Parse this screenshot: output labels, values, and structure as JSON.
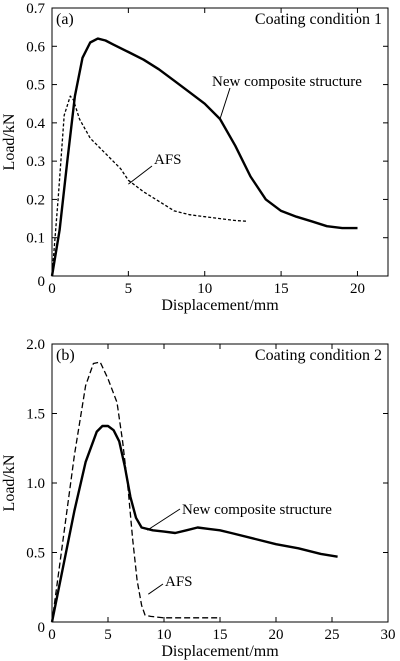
{
  "chart_data": [
    {
      "type": "line",
      "panel_label": "(a)",
      "annotation": "Coating condition 1",
      "xlabel": "Displacement/mm",
      "ylabel": "Load/kN",
      "xlim": [
        0,
        22
      ],
      "ylim": [
        0,
        0.7
      ],
      "xticks": [
        0,
        5,
        10,
        15,
        20
      ],
      "yticks": [
        0,
        0.1,
        0.2,
        0.3,
        0.4,
        0.5,
        0.6,
        0.7
      ],
      "xtick_labels": [
        "0",
        "5",
        "10",
        "15",
        "20"
      ],
      "ytick_labels": [
        "0",
        "0.1",
        "0.2",
        "0.3",
        "0.4",
        "0.5",
        "0.6",
        "0.7"
      ],
      "grid": false,
      "series": [
        {
          "name": "New composite structure",
          "style": "solid",
          "x": [
            0,
            0.5,
            1,
            1.5,
            2,
            2.5,
            3,
            3.5,
            4,
            5,
            6,
            7,
            8,
            9,
            10,
            11,
            12,
            13,
            14,
            15,
            16,
            17,
            18,
            19,
            20
          ],
          "y": [
            0,
            0.12,
            0.3,
            0.47,
            0.57,
            0.61,
            0.62,
            0.615,
            0.605,
            0.585,
            0.565,
            0.54,
            0.51,
            0.48,
            0.45,
            0.41,
            0.34,
            0.26,
            0.2,
            0.17,
            0.155,
            0.143,
            0.13,
            0.125,
            0.125
          ]
        },
        {
          "name": "AFS",
          "style": "dashed",
          "x": [
            0,
            0.4,
            0.8,
            1.2,
            1.4,
            1.8,
            2.5,
            3.5,
            4.5,
            5,
            6,
            7,
            8,
            9,
            10,
            11,
            12,
            12.8
          ],
          "y": [
            0,
            0.2,
            0.42,
            0.47,
            0.46,
            0.41,
            0.36,
            0.32,
            0.28,
            0.25,
            0.22,
            0.195,
            0.17,
            0.16,
            0.155,
            0.15,
            0.145,
            0.143
          ]
        }
      ],
      "labels": [
        {
          "text": "New composite structure",
          "series": "New composite structure"
        },
        {
          "text": "AFS",
          "series": "AFS"
        }
      ]
    },
    {
      "type": "line",
      "panel_label": "(b)",
      "annotation": "Coating condition 2",
      "xlabel": "Displacement/mm",
      "ylabel": "Load/kN",
      "xlim": [
        0,
        30
      ],
      "ylim": [
        0,
        2.0
      ],
      "xticks": [
        0,
        5,
        10,
        15,
        20,
        25,
        30
      ],
      "yticks": [
        0,
        0.5,
        1.0,
        1.5,
        2.0
      ],
      "xtick_labels": [
        "0",
        "5",
        "10",
        "15",
        "20",
        "25",
        "30"
      ],
      "ytick_labels": [
        "0",
        "0.5",
        "1.0",
        "1.5",
        "2.0"
      ],
      "grid": false,
      "series": [
        {
          "name": "New composite structure",
          "style": "solid",
          "x": [
            0,
            1,
            2,
            3,
            4,
            4.5,
            5,
            5.5,
            6,
            6.5,
            7,
            7.5,
            8,
            9,
            10,
            11,
            12,
            13,
            14,
            15,
            16,
            18,
            20,
            22,
            24,
            25.5
          ],
          "y": [
            0,
            0.4,
            0.8,
            1.15,
            1.37,
            1.41,
            1.41,
            1.38,
            1.3,
            1.12,
            0.9,
            0.75,
            0.68,
            0.66,
            0.65,
            0.64,
            0.66,
            0.68,
            0.67,
            0.66,
            0.64,
            0.6,
            0.56,
            0.53,
            0.49,
            0.47
          ]
        },
        {
          "name": "AFS",
          "style": "dashed",
          "x": [
            0,
            1,
            2,
            3,
            3.7,
            4.3,
            5,
            5.8,
            6.3,
            6.8,
            7.2,
            7.6,
            8,
            8.3,
            8.8,
            10,
            12,
            15
          ],
          "y": [
            0,
            0.6,
            1.2,
            1.7,
            1.86,
            1.87,
            1.75,
            1.58,
            1.3,
            0.95,
            0.6,
            0.3,
            0.12,
            0.05,
            0.04,
            0.03,
            0.03,
            0.03
          ]
        }
      ],
      "labels": [
        {
          "text": "New composite structure",
          "series": "New composite structure"
        },
        {
          "text": "AFS",
          "series": "AFS"
        }
      ]
    }
  ]
}
